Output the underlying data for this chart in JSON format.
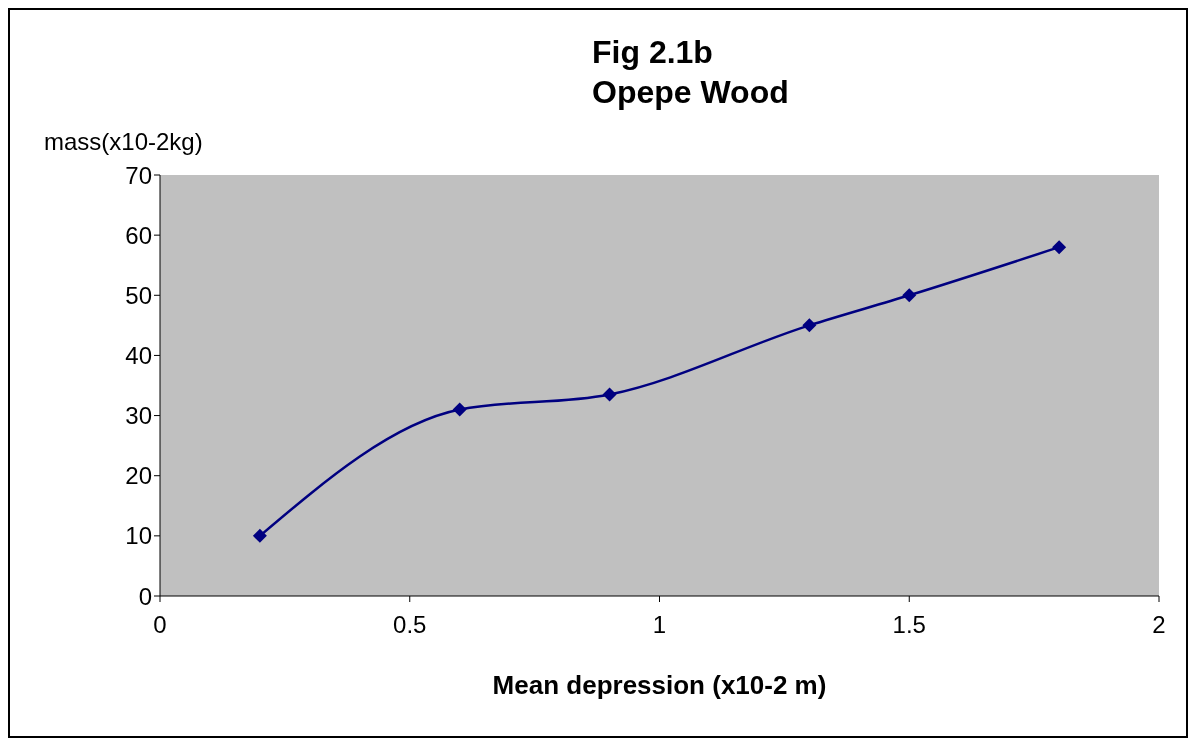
{
  "chart_data": {
    "type": "line",
    "title": "Fig 2.1b",
    "subtitle": "Opepe Wood",
    "xlabel": "Mean depression (x10-2 m)",
    "ylabel": "mass(x10-2kg)",
    "x": [
      0.2,
      0.6,
      0.9,
      1.3,
      1.5,
      1.8
    ],
    "series": [
      {
        "color": "#000080",
        "values": [
          10,
          31,
          33.5,
          45,
          50,
          58
        ]
      }
    ],
    "xlim": [
      0,
      2
    ],
    "xticks": [
      0,
      0.5,
      1,
      1.5,
      2
    ],
    "ylim": [
      0,
      70
    ],
    "yticks": [
      0,
      10,
      20,
      30,
      40,
      50,
      60,
      70
    ],
    "grid": false,
    "legend": false,
    "marker": "diamond",
    "line_style": "solid"
  }
}
